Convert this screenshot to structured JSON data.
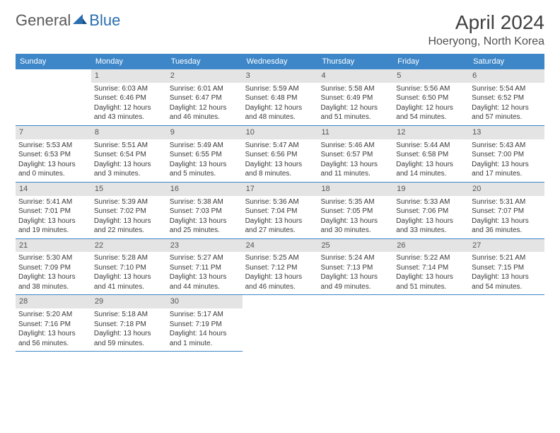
{
  "logo": {
    "text_left": "General",
    "text_right": "Blue"
  },
  "title": "April 2024",
  "location": "Hoeryong, North Korea",
  "colors": {
    "header_bg": "#3d87c9",
    "header_text": "#ffffff",
    "daynum_bg": "#e4e4e4",
    "row_border": "#3d87c9",
    "body_text": "#3a3a3a"
  },
  "day_names": [
    "Sunday",
    "Monday",
    "Tuesday",
    "Wednesday",
    "Thursday",
    "Friday",
    "Saturday"
  ],
  "weeks": [
    [
      null,
      {
        "n": "1",
        "sunrise": "6:03 AM",
        "sunset": "6:46 PM",
        "daylight": "12 hours and 43 minutes."
      },
      {
        "n": "2",
        "sunrise": "6:01 AM",
        "sunset": "6:47 PM",
        "daylight": "12 hours and 46 minutes."
      },
      {
        "n": "3",
        "sunrise": "5:59 AM",
        "sunset": "6:48 PM",
        "daylight": "12 hours and 48 minutes."
      },
      {
        "n": "4",
        "sunrise": "5:58 AM",
        "sunset": "6:49 PM",
        "daylight": "12 hours and 51 minutes."
      },
      {
        "n": "5",
        "sunrise": "5:56 AM",
        "sunset": "6:50 PM",
        "daylight": "12 hours and 54 minutes."
      },
      {
        "n": "6",
        "sunrise": "5:54 AM",
        "sunset": "6:52 PM",
        "daylight": "12 hours and 57 minutes."
      }
    ],
    [
      {
        "n": "7",
        "sunrise": "5:53 AM",
        "sunset": "6:53 PM",
        "daylight": "13 hours and 0 minutes."
      },
      {
        "n": "8",
        "sunrise": "5:51 AM",
        "sunset": "6:54 PM",
        "daylight": "13 hours and 3 minutes."
      },
      {
        "n": "9",
        "sunrise": "5:49 AM",
        "sunset": "6:55 PM",
        "daylight": "13 hours and 5 minutes."
      },
      {
        "n": "10",
        "sunrise": "5:47 AM",
        "sunset": "6:56 PM",
        "daylight": "13 hours and 8 minutes."
      },
      {
        "n": "11",
        "sunrise": "5:46 AM",
        "sunset": "6:57 PM",
        "daylight": "13 hours and 11 minutes."
      },
      {
        "n": "12",
        "sunrise": "5:44 AM",
        "sunset": "6:58 PM",
        "daylight": "13 hours and 14 minutes."
      },
      {
        "n": "13",
        "sunrise": "5:43 AM",
        "sunset": "7:00 PM",
        "daylight": "13 hours and 17 minutes."
      }
    ],
    [
      {
        "n": "14",
        "sunrise": "5:41 AM",
        "sunset": "7:01 PM",
        "daylight": "13 hours and 19 minutes."
      },
      {
        "n": "15",
        "sunrise": "5:39 AM",
        "sunset": "7:02 PM",
        "daylight": "13 hours and 22 minutes."
      },
      {
        "n": "16",
        "sunrise": "5:38 AM",
        "sunset": "7:03 PM",
        "daylight": "13 hours and 25 minutes."
      },
      {
        "n": "17",
        "sunrise": "5:36 AM",
        "sunset": "7:04 PM",
        "daylight": "13 hours and 27 minutes."
      },
      {
        "n": "18",
        "sunrise": "5:35 AM",
        "sunset": "7:05 PM",
        "daylight": "13 hours and 30 minutes."
      },
      {
        "n": "19",
        "sunrise": "5:33 AM",
        "sunset": "7:06 PM",
        "daylight": "13 hours and 33 minutes."
      },
      {
        "n": "20",
        "sunrise": "5:31 AM",
        "sunset": "7:07 PM",
        "daylight": "13 hours and 36 minutes."
      }
    ],
    [
      {
        "n": "21",
        "sunrise": "5:30 AM",
        "sunset": "7:09 PM",
        "daylight": "13 hours and 38 minutes."
      },
      {
        "n": "22",
        "sunrise": "5:28 AM",
        "sunset": "7:10 PM",
        "daylight": "13 hours and 41 minutes."
      },
      {
        "n": "23",
        "sunrise": "5:27 AM",
        "sunset": "7:11 PM",
        "daylight": "13 hours and 44 minutes."
      },
      {
        "n": "24",
        "sunrise": "5:25 AM",
        "sunset": "7:12 PM",
        "daylight": "13 hours and 46 minutes."
      },
      {
        "n": "25",
        "sunrise": "5:24 AM",
        "sunset": "7:13 PM",
        "daylight": "13 hours and 49 minutes."
      },
      {
        "n": "26",
        "sunrise": "5:22 AM",
        "sunset": "7:14 PM",
        "daylight": "13 hours and 51 minutes."
      },
      {
        "n": "27",
        "sunrise": "5:21 AM",
        "sunset": "7:15 PM",
        "daylight": "13 hours and 54 minutes."
      }
    ],
    [
      {
        "n": "28",
        "sunrise": "5:20 AM",
        "sunset": "7:16 PM",
        "daylight": "13 hours and 56 minutes."
      },
      {
        "n": "29",
        "sunrise": "5:18 AM",
        "sunset": "7:18 PM",
        "daylight": "13 hours and 59 minutes."
      },
      {
        "n": "30",
        "sunrise": "5:17 AM",
        "sunset": "7:19 PM",
        "daylight": "14 hours and 1 minute."
      },
      null,
      null,
      null,
      null
    ]
  ],
  "labels": {
    "sunrise": "Sunrise:",
    "sunset": "Sunset:",
    "daylight": "Daylight:"
  }
}
